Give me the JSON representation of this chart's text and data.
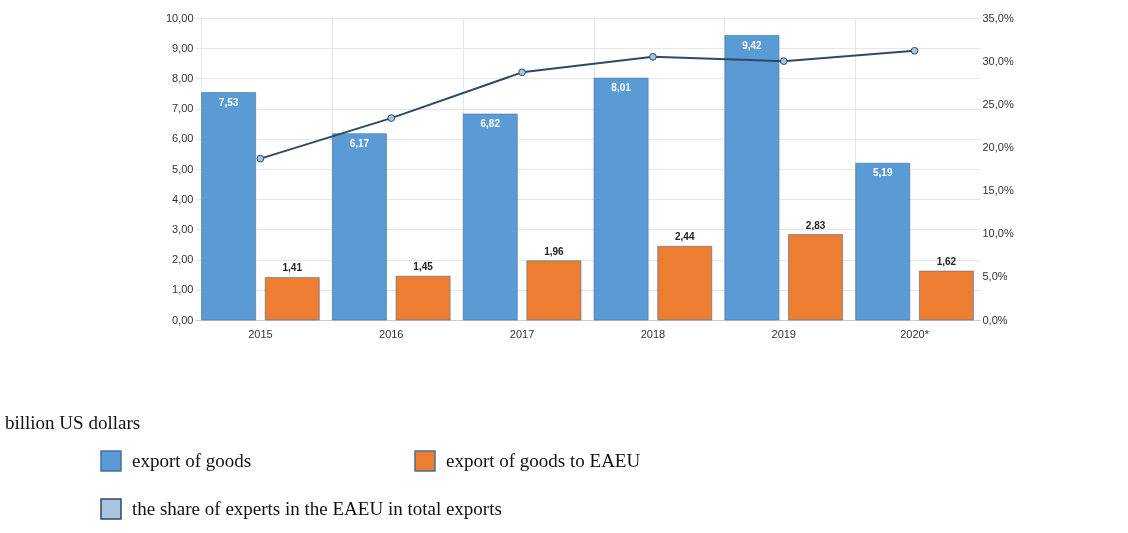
{
  "chart_data": {
    "type": "bar",
    "categories": [
      "2015",
      "2016",
      "2017",
      "2018",
      "2019",
      "2020*"
    ],
    "series": [
      {
        "name": "export of goods",
        "color": "#5b9bd5",
        "values": [
          7.53,
          6.17,
          6.82,
          8.01,
          9.42,
          5.19
        ],
        "value_labels": [
          "7,53",
          "6,17",
          "6,82",
          "8,01",
          "9,42",
          "5,19"
        ]
      },
      {
        "name": "export of goods to EAEU",
        "color": "#ed7d31",
        "values": [
          1.41,
          1.45,
          1.96,
          2.44,
          2.83,
          1.62
        ],
        "value_labels": [
          "1,41",
          "1,45",
          "1,96",
          "2,44",
          "2,83",
          "1,62"
        ]
      },
      {
        "name": "the share of experts in the EAEU in total exports",
        "type": "line",
        "axis": "y2",
        "color": "#2e4a62",
        "values": [
          18.7,
          23.4,
          28.7,
          30.5,
          30.0,
          31.2
        ]
      }
    ],
    "ylim": [
      0,
      10
    ],
    "yticks": [
      {
        "value": 0,
        "label": "0,00"
      },
      {
        "value": 1,
        "label": "1,00"
      },
      {
        "value": 2,
        "label": "2,00"
      },
      {
        "value": 3,
        "label": "3,00"
      },
      {
        "value": 4,
        "label": "4,00"
      },
      {
        "value": 5,
        "label": "5,00"
      },
      {
        "value": 6,
        "label": "6,00"
      },
      {
        "value": 7,
        "label": "7,00"
      },
      {
        "value": 8,
        "label": "8,00"
      },
      {
        "value": 9,
        "label": "9,00"
      },
      {
        "value": 10,
        "label": "10,00"
      }
    ],
    "y2lim": [
      0,
      35
    ],
    "y2ticks": [
      {
        "value": 0,
        "label": "0,0%"
      },
      {
        "value": 5,
        "label": "5,0%"
      },
      {
        "value": 10,
        "label": "10,0%"
      },
      {
        "value": 15,
        "label": "15,0%"
      },
      {
        "value": 20,
        "label": "20,0%"
      },
      {
        "value": 25,
        "label": "25,0%"
      },
      {
        "value": 30,
        "label": "30,0%"
      },
      {
        "value": 35,
        "label": "35,0%"
      }
    ],
    "annotations": [
      "billion US dollars"
    ],
    "grid": true,
    "legend": "bottom",
    "marker": "circle"
  }
}
